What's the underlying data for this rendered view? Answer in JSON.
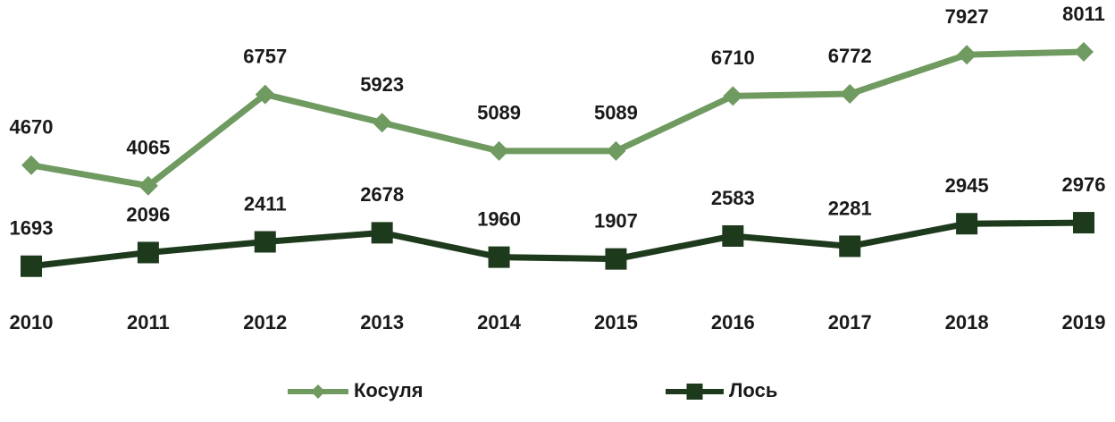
{
  "chart_data": {
    "type": "line",
    "categories": [
      "2010",
      "2011",
      "2012",
      "2013",
      "2014",
      "2015",
      "2016",
      "2017",
      "2018",
      "2019"
    ],
    "series": [
      {
        "name": "Косуля",
        "color": "#6f9a60",
        "marker": "diamond",
        "values": [
          4670,
          4065,
          6757,
          5923,
          5089,
          5089,
          6710,
          6772,
          7927,
          8011
        ]
      },
      {
        "name": "Лось",
        "color": "#1e3a1c",
        "marker": "square",
        "values": [
          1693,
          2096,
          2411,
          2678,
          1960,
          1907,
          2583,
          2281,
          2945,
          2976
        ]
      }
    ],
    "legend": "bottom"
  }
}
